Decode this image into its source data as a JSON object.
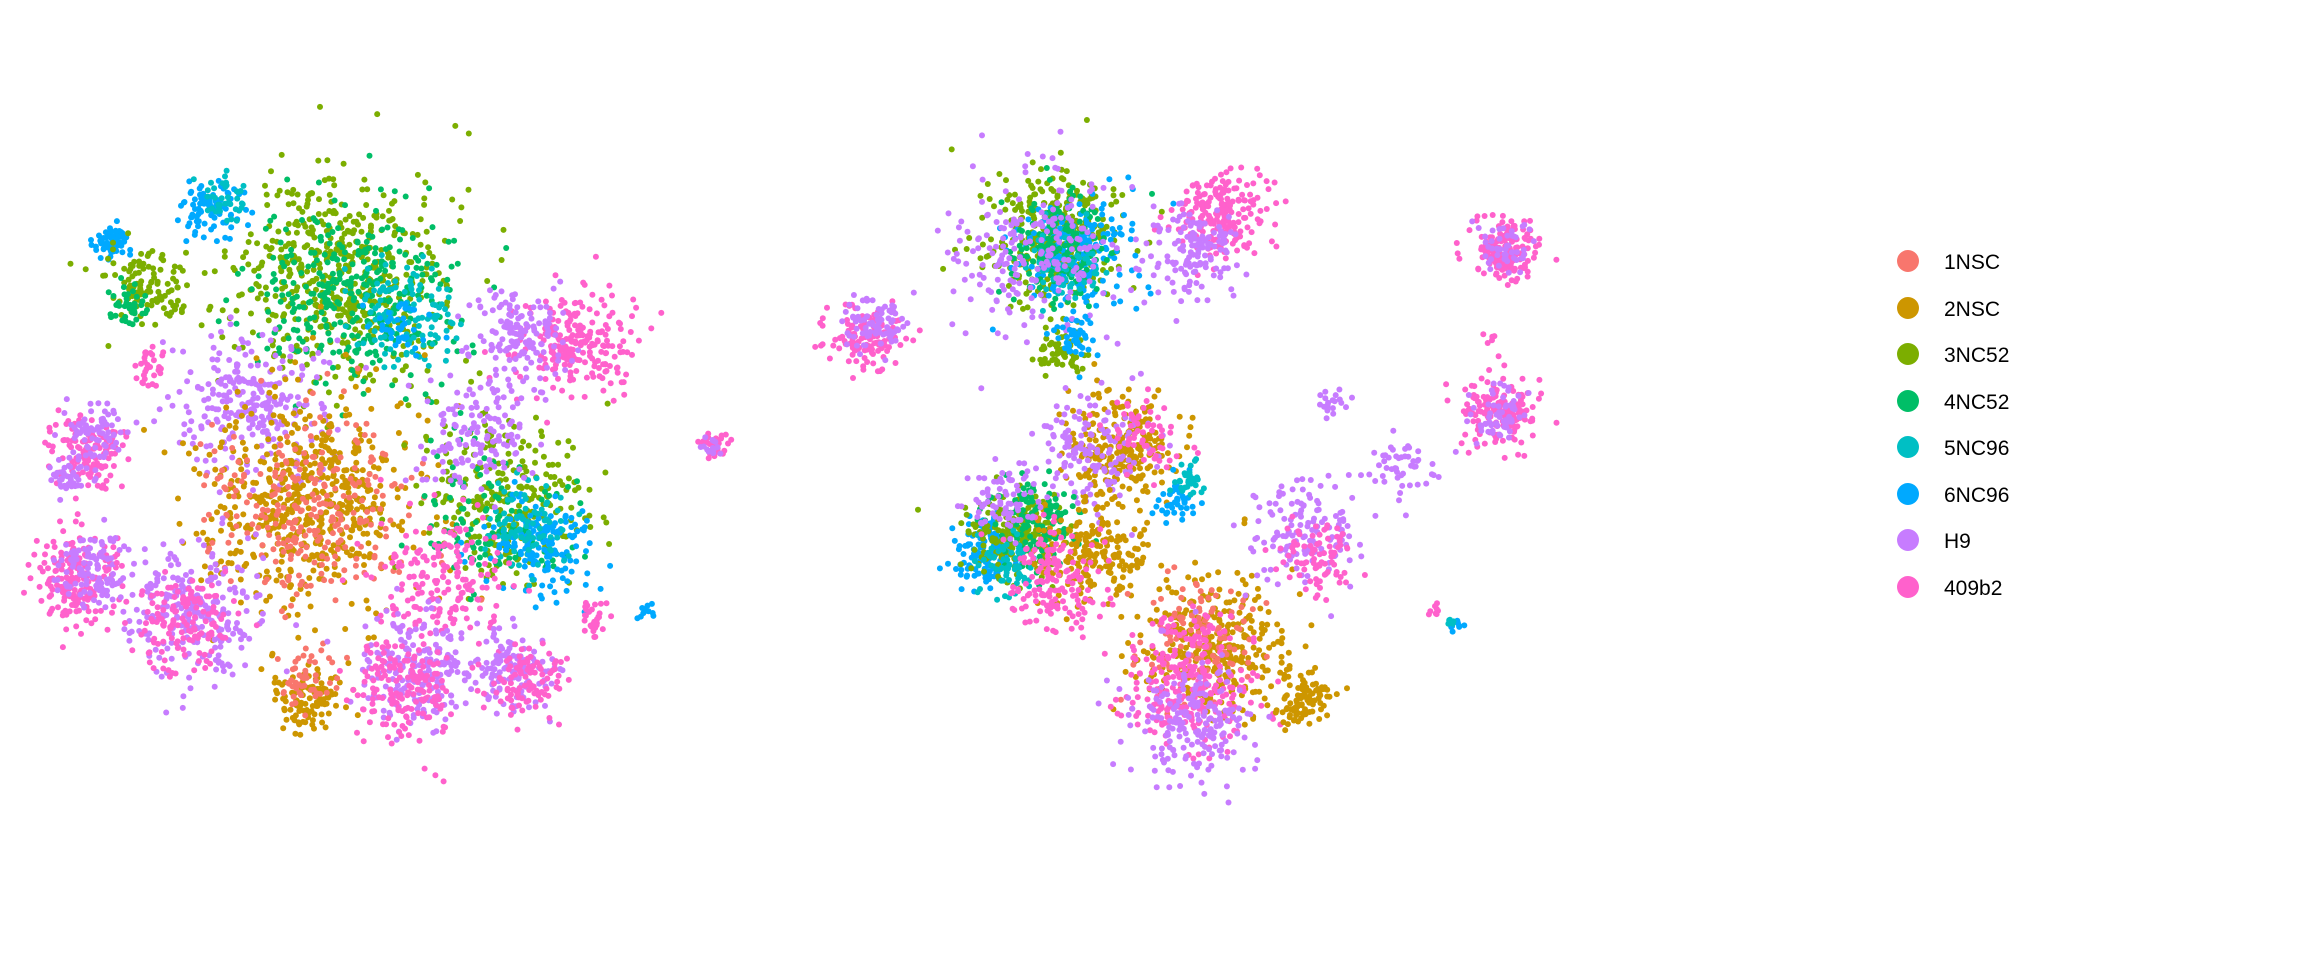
{
  "chart_data": [
    {
      "type": "scatter",
      "panel": "left",
      "title": "",
      "xlabel": "",
      "ylabel": "",
      "axes": "none",
      "grid": false,
      "legend": "shared-right",
      "clusters": [
        {
          "series": "6NC96",
          "x": -0.82,
          "y": 0.72,
          "r": 0.05,
          "n": 70
        },
        {
          "series": "6NC96",
          "x": -0.52,
          "y": 0.82,
          "r": 0.08,
          "n": 90
        },
        {
          "series": "5NC96",
          "x": -0.48,
          "y": 0.85,
          "r": 0.06,
          "n": 40
        },
        {
          "series": "3NC52",
          "x": -0.72,
          "y": 0.58,
          "r": 0.1,
          "n": 110
        },
        {
          "series": "4NC52",
          "x": -0.78,
          "y": 0.55,
          "r": 0.06,
          "n": 40
        },
        {
          "series": "3NC52",
          "x": -0.15,
          "y": 0.62,
          "r": 0.28,
          "n": 520
        },
        {
          "series": "4NC52",
          "x": -0.1,
          "y": 0.58,
          "r": 0.26,
          "n": 340
        },
        {
          "series": "5NC96",
          "x": 0.05,
          "y": 0.52,
          "r": 0.14,
          "n": 110
        },
        {
          "series": "6NC96",
          "x": 0.02,
          "y": 0.48,
          "r": 0.08,
          "n": 40
        },
        {
          "series": "409b2",
          "x": 0.55,
          "y": 0.42,
          "r": 0.16,
          "n": 220
        },
        {
          "series": "H9",
          "x": 0.38,
          "y": 0.45,
          "r": 0.14,
          "n": 150
        },
        {
          "series": "H9",
          "x": -0.4,
          "y": 0.25,
          "r": 0.18,
          "n": 260
        },
        {
          "series": "409b2",
          "x": -0.72,
          "y": 0.35,
          "r": 0.05,
          "n": 30
        },
        {
          "series": "409b2",
          "x": -0.88,
          "y": 0.1,
          "r": 0.1,
          "n": 120
        },
        {
          "series": "H9",
          "x": -0.86,
          "y": 0.14,
          "r": 0.09,
          "n": 80
        },
        {
          "series": "H9",
          "x": -0.95,
          "y": 0.02,
          "r": 0.05,
          "n": 40
        },
        {
          "series": "409b2",
          "x": -0.92,
          "y": -0.28,
          "r": 0.12,
          "n": 180
        },
        {
          "series": "H9",
          "x": -0.88,
          "y": -0.25,
          "r": 0.1,
          "n": 110
        },
        {
          "series": "2NSC",
          "x": -0.25,
          "y": -0.05,
          "r": 0.28,
          "n": 560
        },
        {
          "series": "1NSC",
          "x": -0.22,
          "y": -0.08,
          "r": 0.26,
          "n": 280
        },
        {
          "series": "2NSC",
          "x": -0.25,
          "y": -0.62,
          "r": 0.1,
          "n": 110
        },
        {
          "series": "1NSC",
          "x": -0.25,
          "y": -0.58,
          "r": 0.08,
          "n": 50
        },
        {
          "series": "3NC52",
          "x": 0.35,
          "y": -0.05,
          "r": 0.22,
          "n": 260
        },
        {
          "series": "4NC52",
          "x": 0.3,
          "y": -0.1,
          "r": 0.2,
          "n": 120
        },
        {
          "series": "6NC96",
          "x": 0.45,
          "y": -0.18,
          "r": 0.14,
          "n": 160
        },
        {
          "series": "5NC96",
          "x": 0.4,
          "y": -0.12,
          "r": 0.12,
          "n": 80
        },
        {
          "series": "H9",
          "x": 0.25,
          "y": 0.15,
          "r": 0.16,
          "n": 140
        },
        {
          "series": "409b2",
          "x": 0.15,
          "y": -0.28,
          "r": 0.18,
          "n": 180
        },
        {
          "series": "H9",
          "x": -0.58,
          "y": -0.38,
          "r": 0.18,
          "n": 240
        },
        {
          "series": "409b2",
          "x": -0.62,
          "y": -0.42,
          "r": 0.14,
          "n": 140
        },
        {
          "series": "H9",
          "x": 0.08,
          "y": -0.55,
          "r": 0.16,
          "n": 200
        },
        {
          "series": "409b2",
          "x": 0.05,
          "y": -0.6,
          "r": 0.14,
          "n": 160
        },
        {
          "series": "H9",
          "x": 0.35,
          "y": -0.55,
          "r": 0.12,
          "n": 120
        },
        {
          "series": "409b2",
          "x": 0.4,
          "y": -0.58,
          "r": 0.1,
          "n": 100
        },
        {
          "series": "409b2",
          "x": 0.6,
          "y": -0.4,
          "r": 0.05,
          "n": 30
        },
        {
          "series": "6NC96",
          "x": 0.75,
          "y": -0.38,
          "r": 0.02,
          "n": 12
        },
        {
          "series": "409b2",
          "x": 0.95,
          "y": 0.12,
          "r": 0.04,
          "n": 30
        },
        {
          "series": "H9",
          "x": 0.95,
          "y": 0.12,
          "r": 0.03,
          "n": 15
        }
      ]
    },
    {
      "type": "scatter",
      "panel": "right",
      "title": "",
      "xlabel": "",
      "ylabel": "",
      "axes": "none",
      "grid": false,
      "legend": "shared-right",
      "clusters": [
        {
          "series": "3NC52",
          "x": -0.3,
          "y": 0.75,
          "r": 0.18,
          "n": 360
        },
        {
          "series": "6NC96",
          "x": -0.25,
          "y": 0.7,
          "r": 0.16,
          "n": 200
        },
        {
          "series": "4NC52",
          "x": -0.32,
          "y": 0.72,
          "r": 0.14,
          "n": 160
        },
        {
          "series": "5NC96",
          "x": -0.28,
          "y": 0.66,
          "r": 0.1,
          "n": 60
        },
        {
          "series": "H9",
          "x": -0.38,
          "y": 0.7,
          "r": 0.22,
          "n": 220
        },
        {
          "series": "409b2",
          "x": 0.18,
          "y": 0.82,
          "r": 0.12,
          "n": 200
        },
        {
          "series": "H9",
          "x": 0.1,
          "y": 0.7,
          "r": 0.12,
          "n": 140
        },
        {
          "series": "409b2",
          "x": -0.85,
          "y": 0.45,
          "r": 0.09,
          "n": 120
        },
        {
          "series": "H9",
          "x": -0.82,
          "y": 0.48,
          "r": 0.08,
          "n": 80
        },
        {
          "series": "3NC52",
          "x": -0.3,
          "y": 0.4,
          "r": 0.06,
          "n": 60
        },
        {
          "series": "6NC96",
          "x": -0.25,
          "y": 0.45,
          "r": 0.05,
          "n": 40
        },
        {
          "series": "2NSC",
          "x": -0.12,
          "y": 0.12,
          "r": 0.14,
          "n": 240
        },
        {
          "series": "H9",
          "x": -0.2,
          "y": 0.1,
          "r": 0.16,
          "n": 140
        },
        {
          "series": "409b2",
          "x": -0.05,
          "y": 0.15,
          "r": 0.1,
          "n": 60
        },
        {
          "series": "6NC96",
          "x": -0.5,
          "y": -0.2,
          "r": 0.09,
          "n": 140
        },
        {
          "series": "3NC52",
          "x": -0.42,
          "y": -0.15,
          "r": 0.12,
          "n": 180
        },
        {
          "series": "4NC52",
          "x": -0.35,
          "y": -0.12,
          "r": 0.12,
          "n": 140
        },
        {
          "series": "5NC96",
          "x": -0.45,
          "y": -0.25,
          "r": 0.08,
          "n": 60
        },
        {
          "series": "2NSC",
          "x": -0.2,
          "y": -0.2,
          "r": 0.14,
          "n": 200
        },
        {
          "series": "409b2",
          "x": -0.3,
          "y": -0.3,
          "r": 0.14,
          "n": 160
        },
        {
          "series": "H9",
          "x": -0.45,
          "y": -0.05,
          "r": 0.1,
          "n": 80
        },
        {
          "series": "6NC96",
          "x": 0.05,
          "y": -0.05,
          "r": 0.06,
          "n": 40
        },
        {
          "series": "5NC96",
          "x": 0.08,
          "y": 0.02,
          "r": 0.05,
          "n": 30
        },
        {
          "series": "2NSC",
          "x": 0.15,
          "y": -0.48,
          "r": 0.2,
          "n": 320
        },
        {
          "series": "1NSC",
          "x": 0.1,
          "y": -0.45,
          "r": 0.16,
          "n": 120
        },
        {
          "series": "409b2",
          "x": 0.08,
          "y": -0.6,
          "r": 0.18,
          "n": 260
        },
        {
          "series": "H9",
          "x": 0.1,
          "y": -0.72,
          "r": 0.16,
          "n": 200
        },
        {
          "series": "2NSC",
          "x": 0.42,
          "y": -0.65,
          "r": 0.07,
          "n": 90
        },
        {
          "series": "H9",
          "x": 0.42,
          "y": -0.15,
          "r": 0.14,
          "n": 140
        },
        {
          "series": "409b2",
          "x": 0.45,
          "y": -0.22,
          "r": 0.1,
          "n": 80
        },
        {
          "series": "H9",
          "x": 0.7,
          "y": 0.05,
          "r": 0.1,
          "n": 50
        },
        {
          "series": "H9",
          "x": 0.5,
          "y": 0.25,
          "r": 0.04,
          "n": 20
        },
        {
          "series": "409b2",
          "x": 1.0,
          "y": 0.72,
          "r": 0.09,
          "n": 160
        },
        {
          "series": "H9",
          "x": 1.0,
          "y": 0.72,
          "r": 0.07,
          "n": 50
        },
        {
          "series": "409b2",
          "x": 0.98,
          "y": 0.22,
          "r": 0.1,
          "n": 160
        },
        {
          "series": "H9",
          "x": 0.98,
          "y": 0.22,
          "r": 0.08,
          "n": 60
        },
        {
          "series": "409b2",
          "x": 0.95,
          "y": 0.45,
          "r": 0.02,
          "n": 5
        },
        {
          "series": "409b2",
          "x": 0.8,
          "y": -0.38,
          "r": 0.03,
          "n": 8
        },
        {
          "series": "6NC96",
          "x": 0.86,
          "y": -0.43,
          "r": 0.02,
          "n": 8
        },
        {
          "series": "5NC96",
          "x": 0.84,
          "y": -0.41,
          "r": 0.02,
          "n": 6
        }
      ]
    }
  ],
  "legend": {
    "position": "right",
    "items": [
      {
        "label": "1NSC",
        "color": "#F8766D"
      },
      {
        "label": "2NSC",
        "color": "#CD9600"
      },
      {
        "label": "3NC52",
        "color": "#7CAE00"
      },
      {
        "label": "4NC52",
        "color": "#00BE67"
      },
      {
        "label": "5NC96",
        "color": "#00BFC4"
      },
      {
        "label": "6NC96",
        "color": "#00A9FF"
      },
      {
        "label": "H9",
        "color": "#C77CFF"
      },
      {
        "label": "409b2",
        "color": "#FF61CC"
      }
    ]
  }
}
